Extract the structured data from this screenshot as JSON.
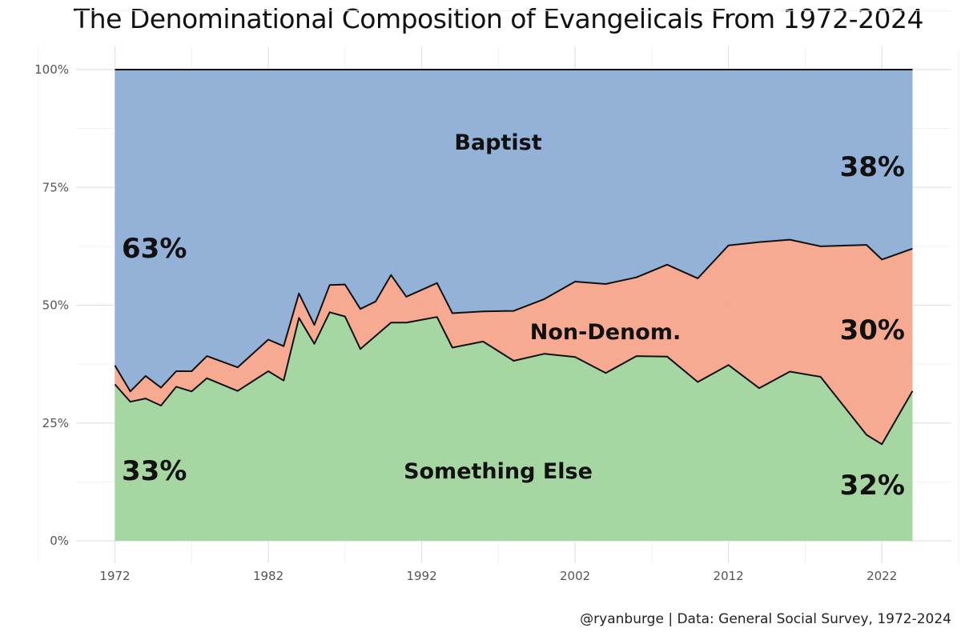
{
  "chart_data": {
    "type": "area",
    "stacked": true,
    "normalized": true,
    "title": "The Denominational Composition of Evangelicals From 1972-2024",
    "caption": "@ryanburge | Data: General Social Survey, 1972-2024",
    "xlabel": "",
    "ylabel": "",
    "xlim": [
      1972,
      2024
    ],
    "ylim": [
      0,
      1
    ],
    "x_ticks": [
      1972,
      1982,
      1992,
      2002,
      2012,
      2022
    ],
    "y_ticks": [
      {
        "value": 0,
        "label": "0%"
      },
      {
        "value": 0.25,
        "label": "25%"
      },
      {
        "value": 0.5,
        "label": "50%"
      },
      {
        "value": 0.75,
        "label": "75%"
      },
      {
        "value": 1,
        "label": "100%"
      }
    ],
    "grid": true,
    "legend": "none",
    "x": [
      1972,
      1973,
      1974,
      1975,
      1976,
      1977,
      1978,
      1980,
      1982,
      1983,
      1984,
      1985,
      1986,
      1987,
      1988,
      1989,
      1990,
      1991,
      1993,
      1994,
      1996,
      1998,
      2000,
      2002,
      2004,
      2006,
      2008,
      2010,
      2012,
      2014,
      2016,
      2018,
      2021,
      2022,
      2024
    ],
    "series": [
      {
        "name": "Something Else",
        "color": "#a1d49c",
        "values": [
          0.332,
          0.295,
          0.302,
          0.287,
          0.327,
          0.317,
          0.345,
          0.318,
          0.36,
          0.34,
          0.473,
          0.418,
          0.485,
          0.476,
          0.407,
          0.435,
          0.463,
          0.463,
          0.475,
          0.41,
          0.423,
          0.382,
          0.397,
          0.39,
          0.356,
          0.392,
          0.391,
          0.337,
          0.373,
          0.324,
          0.359,
          0.348,
          0.225,
          0.205,
          0.318
        ]
      },
      {
        "name": "Non-Denom.",
        "color": "#f6a58b",
        "values": [
          0.04,
          0.022,
          0.048,
          0.038,
          0.033,
          0.043,
          0.047,
          0.05,
          0.067,
          0.073,
          0.052,
          0.04,
          0.058,
          0.068,
          0.085,
          0.073,
          0.101,
          0.055,
          0.072,
          0.073,
          0.064,
          0.106,
          0.116,
          0.16,
          0.189,
          0.167,
          0.195,
          0.22,
          0.254,
          0.31,
          0.28,
          0.277,
          0.403,
          0.392,
          0.302
        ]
      },
      {
        "name": "Baptist",
        "color": "#8eadd5",
        "values": [
          0.628,
          0.683,
          0.65,
          0.675,
          0.64,
          0.64,
          0.608,
          0.632,
          0.573,
          0.587,
          0.475,
          0.542,
          0.457,
          0.456,
          0.508,
          0.492,
          0.436,
          0.482,
          0.453,
          0.517,
          0.513,
          0.512,
          0.487,
          0.45,
          0.455,
          0.441,
          0.414,
          0.443,
          0.373,
          0.366,
          0.361,
          0.375,
          0.372,
          0.403,
          0.38
        ]
      }
    ],
    "annotations": [
      {
        "text": "Baptist",
        "series": "Baptist"
      },
      {
        "text": "Non-Denom.",
        "series": "Non-Denom."
      },
      {
        "text": "Something Else",
        "series": "Something Else"
      },
      {
        "text": "63%",
        "series": "Baptist",
        "year": 1972
      },
      {
        "text": "33%",
        "series": "Something Else",
        "year": 1972
      },
      {
        "text": "38%",
        "series": "Baptist",
        "year": 2024
      },
      {
        "text": "30%",
        "series": "Non-Denom.",
        "year": 2024
      },
      {
        "text": "32%",
        "series": "Something Else",
        "year": 2024
      }
    ]
  }
}
